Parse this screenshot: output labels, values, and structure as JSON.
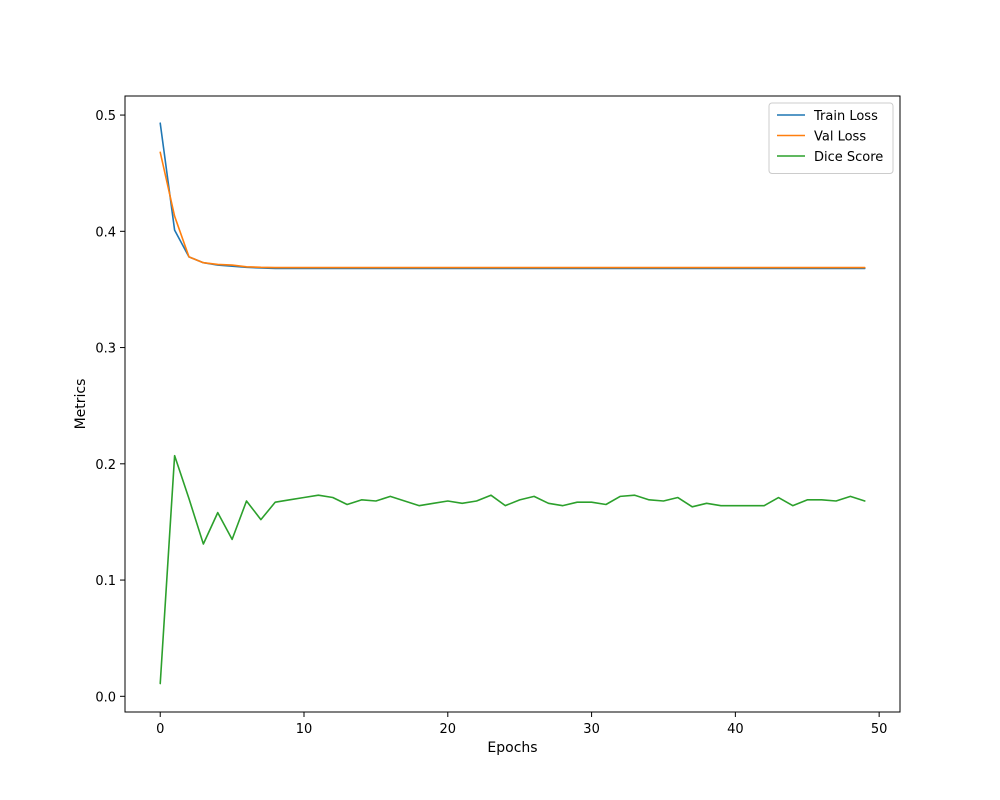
{
  "chart_data": {
    "type": "line",
    "title": "",
    "xlabel": "Epochs",
    "ylabel": "Metrics",
    "xlim": [
      -2.45,
      51.45
    ],
    "ylim": [
      -0.0135,
      0.5164
    ],
    "xticks": [
      0,
      10,
      20,
      30,
      40,
      50
    ],
    "yticks": [
      0.0,
      0.1,
      0.2,
      0.3,
      0.4,
      0.5
    ],
    "xtick_labels": [
      "0",
      "10",
      "20",
      "30",
      "40",
      "50"
    ],
    "ytick_labels": [
      "0.0",
      "0.1",
      "0.2",
      "0.3",
      "0.4",
      "0.5"
    ],
    "grid": false,
    "legend": "top-right",
    "x": [
      0,
      1,
      2,
      3,
      4,
      5,
      6,
      7,
      8,
      9,
      10,
      11,
      12,
      13,
      14,
      15,
      16,
      17,
      18,
      19,
      20,
      21,
      22,
      23,
      24,
      25,
      26,
      27,
      28,
      29,
      30,
      31,
      32,
      33,
      34,
      35,
      36,
      37,
      38,
      39,
      40,
      41,
      42,
      43,
      44,
      45,
      46,
      47,
      48,
      49
    ],
    "series": [
      {
        "name": "Train Loss",
        "color": "#1f77b4",
        "values": [
          0.493,
          0.401,
          0.378,
          0.373,
          0.371,
          0.37,
          0.369,
          0.3685,
          0.368,
          0.368,
          0.368,
          0.368,
          0.368,
          0.368,
          0.368,
          0.368,
          0.368,
          0.368,
          0.368,
          0.368,
          0.368,
          0.368,
          0.368,
          0.368,
          0.368,
          0.368,
          0.368,
          0.368,
          0.368,
          0.368,
          0.368,
          0.368,
          0.368,
          0.368,
          0.368,
          0.368,
          0.368,
          0.368,
          0.368,
          0.368,
          0.368,
          0.368,
          0.368,
          0.368,
          0.368,
          0.368,
          0.368,
          0.368,
          0.368,
          0.368
        ]
      },
      {
        "name": "Val Loss",
        "color": "#ff7f0e",
        "values": [
          0.468,
          0.413,
          0.378,
          0.373,
          0.3715,
          0.371,
          0.3695,
          0.369,
          0.3688,
          0.3688,
          0.3688,
          0.3688,
          0.3688,
          0.3688,
          0.3688,
          0.3688,
          0.3688,
          0.3688,
          0.3688,
          0.3688,
          0.3688,
          0.3688,
          0.3688,
          0.3688,
          0.3688,
          0.3688,
          0.3688,
          0.3688,
          0.3688,
          0.3688,
          0.3688,
          0.3688,
          0.3688,
          0.3688,
          0.3688,
          0.3688,
          0.3688,
          0.3688,
          0.3688,
          0.3688,
          0.3688,
          0.3688,
          0.3688,
          0.3688,
          0.3688,
          0.3688,
          0.3688,
          0.3688,
          0.3688,
          0.3688
        ]
      },
      {
        "name": "Dice Score",
        "color": "#2ca02c",
        "values": [
          0.011,
          0.207,
          0.17,
          0.131,
          0.158,
          0.135,
          0.168,
          0.152,
          0.167,
          0.169,
          0.171,
          0.173,
          0.171,
          0.165,
          0.169,
          0.168,
          0.172,
          0.168,
          0.164,
          0.166,
          0.168,
          0.166,
          0.168,
          0.173,
          0.164,
          0.169,
          0.172,
          0.166,
          0.164,
          0.167,
          0.167,
          0.165,
          0.172,
          0.173,
          0.169,
          0.168,
          0.171,
          0.163,
          0.166,
          0.164,
          0.164,
          0.164,
          0.164,
          0.171,
          0.164,
          0.169,
          0.169,
          0.168,
          0.172,
          0.168
        ]
      }
    ]
  }
}
